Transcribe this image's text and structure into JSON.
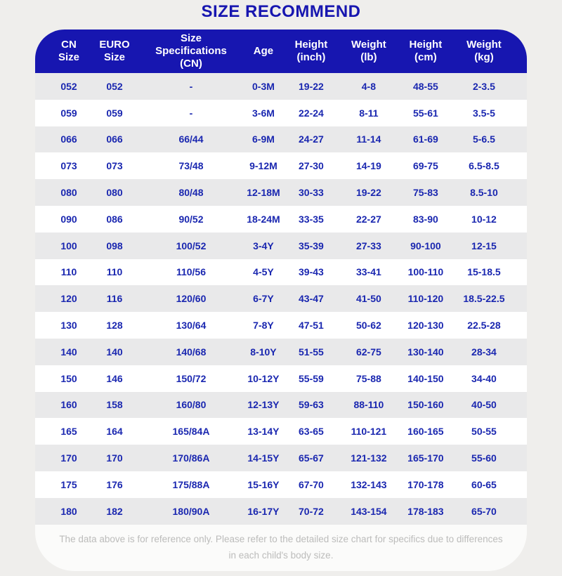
{
  "title": "SIZE RECOMMEND",
  "colors": {
    "page_background": "#efeeec",
    "header_background": "#1716b0",
    "title_text": "#1716b0",
    "cell_text": "#1a27b0",
    "row_stripe": "#e9e9ea",
    "row_white": "#ffffff",
    "footer_text": "#bcbcbb"
  },
  "table": {
    "columns": [
      {
        "key": "cn-size",
        "lines": [
          "CN",
          "Size"
        ]
      },
      {
        "key": "euro-size",
        "lines": [
          "EURO",
          "Size"
        ]
      },
      {
        "key": "size-spec",
        "lines": [
          "Size",
          "Specifications",
          "(CN)"
        ]
      },
      {
        "key": "age",
        "lines": [
          "Age"
        ]
      },
      {
        "key": "height-inch",
        "lines": [
          "Height",
          "(inch)"
        ]
      },
      {
        "key": "weight-lb",
        "lines": [
          "Weight",
          "(lb)"
        ]
      },
      {
        "key": "height-cm",
        "lines": [
          "Height",
          "(cm)"
        ]
      },
      {
        "key": "weight-kg",
        "lines": [
          "Weight",
          "(kg)"
        ]
      }
    ],
    "rows": [
      [
        "052",
        "052",
        "-",
        "0-3M",
        "19-22",
        "4-8",
        "48-55",
        "2-3.5"
      ],
      [
        "059",
        "059",
        "-",
        "3-6M",
        "22-24",
        "8-11",
        "55-61",
        "3.5-5"
      ],
      [
        "066",
        "066",
        "66/44",
        "6-9M",
        "24-27",
        "11-14",
        "61-69",
        "5-6.5"
      ],
      [
        "073",
        "073",
        "73/48",
        "9-12M",
        "27-30",
        "14-19",
        "69-75",
        "6.5-8.5"
      ],
      [
        "080",
        "080",
        "80/48",
        "12-18M",
        "30-33",
        "19-22",
        "75-83",
        "8.5-10"
      ],
      [
        "090",
        "086",
        "90/52",
        "18-24M",
        "33-35",
        "22-27",
        "83-90",
        "10-12"
      ],
      [
        "100",
        "098",
        "100/52",
        "3-4Y",
        "35-39",
        "27-33",
        "90-100",
        "12-15"
      ],
      [
        "110",
        "110",
        "110/56",
        "4-5Y",
        "39-43",
        "33-41",
        "100-110",
        "15-18.5"
      ],
      [
        "120",
        "116",
        "120/60",
        "6-7Y",
        "43-47",
        "41-50",
        "110-120",
        "18.5-22.5"
      ],
      [
        "130",
        "128",
        "130/64",
        "7-8Y",
        "47-51",
        "50-62",
        "120-130",
        "22.5-28"
      ],
      [
        "140",
        "140",
        "140/68",
        "8-10Y",
        "51-55",
        "62-75",
        "130-140",
        "28-34"
      ],
      [
        "150",
        "146",
        "150/72",
        "10-12Y",
        "55-59",
        "75-88",
        "140-150",
        "34-40"
      ],
      [
        "160",
        "158",
        "160/80",
        "12-13Y",
        "59-63",
        "88-110",
        "150-160",
        "40-50"
      ],
      [
        "165",
        "164",
        "165/84A",
        "13-14Y",
        "63-65",
        "110-121",
        "160-165",
        "50-55"
      ],
      [
        "170",
        "170",
        "170/86A",
        "14-15Y",
        "65-67",
        "121-132",
        "165-170",
        "55-60"
      ],
      [
        "175",
        "176",
        "175/88A",
        "15-16Y",
        "67-70",
        "132-143",
        "170-178",
        "60-65"
      ],
      [
        "180",
        "182",
        "180/90A",
        "16-17Y",
        "70-72",
        "143-154",
        "178-183",
        "65-70"
      ]
    ]
  },
  "footer": {
    "note": "The data above is for reference only. Please refer to the detailed size chart for specifics due to differences in each child's body size."
  }
}
